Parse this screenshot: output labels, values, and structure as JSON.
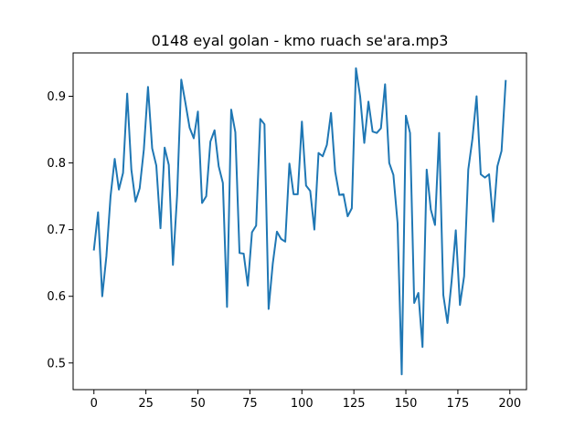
{
  "chart_data": {
    "type": "line",
    "title": "0148 eyal golan - kmo ruach se'ara.mp3",
    "xlabel": "",
    "ylabel": "",
    "xlim": [
      -10,
      208
    ],
    "ylim": [
      0.46,
      0.965
    ],
    "xticks": [
      0,
      25,
      50,
      75,
      100,
      125,
      150,
      175,
      200
    ],
    "xtick_labels": [
      "0",
      "25",
      "50",
      "75",
      "100",
      "125",
      "150",
      "175",
      "200"
    ],
    "yticks": [
      0.5,
      0.6,
      0.7,
      0.8,
      0.9
    ],
    "ytick_labels": [
      "0.5",
      "0.6",
      "0.7",
      "0.8",
      "0.9"
    ],
    "grid": false,
    "legend": false,
    "line_color": "#1f77b4",
    "series": [
      {
        "x": [
          0,
          2,
          4,
          6,
          8,
          10,
          12,
          14,
          16,
          18,
          20,
          22,
          24,
          26,
          28,
          30,
          32,
          34,
          36,
          38,
          40,
          42,
          44,
          46,
          48,
          50,
          52,
          54,
          56,
          58,
          60,
          62,
          64,
          66,
          68,
          70,
          72,
          74,
          76,
          78,
          80,
          82,
          84,
          86,
          88,
          90,
          92,
          94,
          96,
          98,
          100,
          102,
          104,
          106,
          108,
          110,
          112,
          114,
          116,
          118,
          120,
          122,
          124,
          126,
          128,
          130,
          132,
          134,
          136,
          138,
          140,
          142,
          144,
          146,
          148,
          150,
          152,
          154,
          156,
          158,
          160,
          162,
          164,
          166,
          168,
          170,
          172,
          174,
          176,
          178,
          180,
          182,
          184,
          186,
          188,
          190,
          192,
          194,
          196,
          198
        ],
        "y": [
          0.67,
          0.726,
          0.6,
          0.66,
          0.75,
          0.806,
          0.76,
          0.785,
          0.904,
          0.79,
          0.742,
          0.762,
          0.82,
          0.914,
          0.822,
          0.796,
          0.702,
          0.823,
          0.797,
          0.647,
          0.751,
          0.925,
          0.89,
          0.853,
          0.837,
          0.877,
          0.74,
          0.75,
          0.832,
          0.849,
          0.795,
          0.77,
          0.584,
          0.88,
          0.846,
          0.665,
          0.664,
          0.616,
          0.696,
          0.706,
          0.866,
          0.858,
          0.581,
          0.649,
          0.697,
          0.686,
          0.682,
          0.799,
          0.753,
          0.753,
          0.862,
          0.766,
          0.758,
          0.7,
          0.815,
          0.81,
          0.827,
          0.875,
          0.787,
          0.752,
          0.753,
          0.72,
          0.732,
          0.942,
          0.9,
          0.83,
          0.892,
          0.847,
          0.845,
          0.852,
          0.918,
          0.8,
          0.782,
          0.71,
          0.483,
          0.871,
          0.845,
          0.59,
          0.605,
          0.524,
          0.79,
          0.73,
          0.707,
          0.845,
          0.602,
          0.56,
          0.623,
          0.699,
          0.587,
          0.63,
          0.79,
          0.836,
          0.9,
          0.783,
          0.778,
          0.783,
          0.712,
          0.795,
          0.818,
          0.923
        ]
      }
    ]
  }
}
